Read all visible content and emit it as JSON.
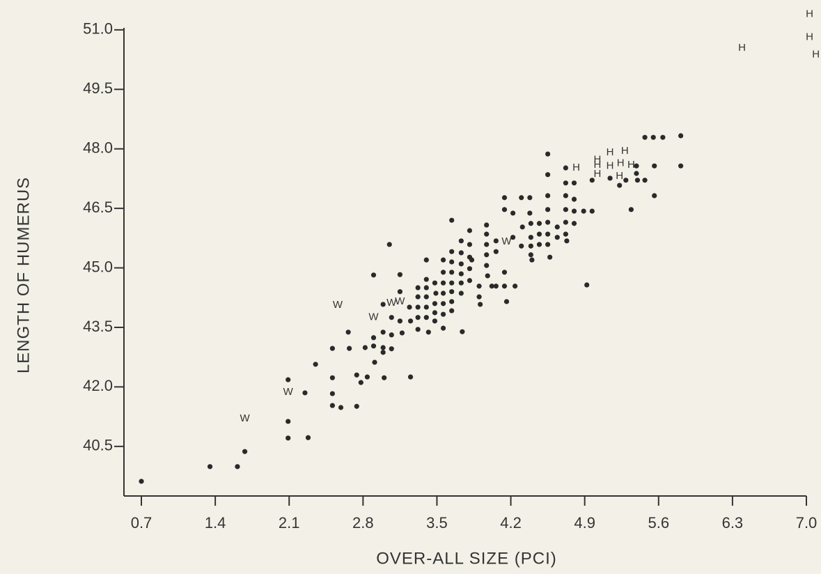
{
  "chart_data": {
    "type": "scatter",
    "x_label": "OVER-ALL SIZE (PCI)",
    "y_label": "LENGTH OF HUMERUS",
    "xlim": [
      0.535,
      7.0
    ],
    "ylim": [
      39.25,
      51.05
    ],
    "xticks": [
      0.7,
      1.4,
      2.1,
      2.8,
      3.5,
      4.2,
      4.9,
      5.6,
      6.3,
      {
        "value": 7,
        "label": "7.0"
      }
    ],
    "yticks": [
      {
        "value": 51,
        "label": "51.0"
      },
      49.5,
      {
        "value": 48,
        "label": "48.0"
      },
      46.5,
      {
        "value": 45,
        "label": "45.0"
      },
      43.5,
      {
        "value": 42,
        "label": "42.0"
      },
      40.5
    ],
    "color": "#2a2a2a",
    "series": [
      {
        "marker": "dot",
        "x": [
          0.7,
          1.35,
          1.61,
          1.68,
          2.09,
          2.09,
          2.09,
          2.25,
          2.28,
          2.35,
          2.51,
          2.51,
          2.51,
          2.51,
          2.59,
          2.74,
          2.66,
          2.67,
          2.74,
          2.78,
          2.82,
          2.84,
          2.9,
          2.9,
          2.91,
          2.9,
          2.99,
          2.99,
          2.99,
          3.0,
          2.99,
          3.05,
          3.07,
          3.07,
          3.07,
          3.15,
          3.15,
          3.15,
          3.17,
          3.24,
          3.25,
          3.25,
          3.32,
          3.32,
          3.32,
          3.32,
          3.32,
          3.4,
          3.4,
          3.4,
          3.4,
          3.4,
          3.4,
          3.42,
          3.48,
          3.49,
          3.48,
          3.48,
          3.48,
          3.56,
          3.56,
          3.56,
          3.56,
          3.56,
          3.56,
          3.56,
          3.64,
          3.64,
          3.64,
          3.64,
          3.64,
          3.64,
          3.64,
          3.64,
          3.73,
          3.73,
          3.73,
          3.73,
          3.73,
          3.73,
          3.74,
          3.81,
          3.81,
          3.81,
          3.81,
          3.81,
          3.83,
          3.9,
          3.9,
          3.91,
          3.97,
          3.97,
          3.97,
          3.97,
          3.97,
          3.98,
          4.02,
          4.06,
          4.06,
          4.06,
          4.14,
          4.14,
          4.16,
          4.14,
          4.14,
          4.22,
          4.24,
          4.22,
          4.3,
          4.31,
          4.3,
          4.38,
          4.38,
          4.39,
          4.39,
          4.39,
          4.39,
          4.4,
          4.47,
          4.47,
          4.47,
          4.55,
          4.55,
          4.55,
          4.55,
          4.55,
          4.55,
          4.55,
          4.57,
          4.64,
          4.64,
          4.72,
          4.72,
          4.72,
          4.72,
          4.72,
          4.72,
          4.73,
          4.8,
          4.8,
          4.8,
          4.8,
          4.89,
          4.97,
          4.92,
          5.34,
          4.97,
          5.14,
          5.23,
          5.29,
          5.39,
          5.39,
          5.4,
          5.47,
          5.55,
          5.64,
          5.81,
          5.47,
          5.56,
          5.56,
          5.81
        ],
        "values": [
          39.62,
          39.99,
          39.99,
          40.37,
          40.71,
          41.13,
          42.18,
          41.85,
          40.72,
          42.57,
          42.97,
          42.23,
          41.83,
          41.53,
          41.48,
          41.51,
          43.38,
          42.97,
          42.3,
          42.11,
          42.99,
          42.25,
          43.24,
          43.03,
          42.62,
          44.82,
          43.38,
          42.99,
          44.08,
          42.23,
          42.87,
          45.59,
          43.75,
          43.31,
          42.96,
          44.83,
          44.4,
          43.66,
          43.36,
          44.01,
          43.66,
          42.25,
          44.5,
          44.27,
          44.01,
          43.75,
          43.45,
          45.2,
          44.71,
          44.5,
          44.27,
          44.01,
          43.75,
          43.38,
          44.62,
          44.36,
          44.1,
          43.87,
          43.66,
          45.2,
          44.89,
          44.62,
          44.36,
          44.1,
          43.83,
          43.48,
          46.2,
          45.41,
          45.15,
          44.89,
          44.62,
          44.4,
          44.15,
          43.92,
          45.68,
          45.38,
          45.1,
          44.85,
          44.62,
          44.36,
          43.39,
          45.94,
          45.59,
          45.27,
          44.98,
          44.68,
          45.2,
          44.54,
          44.27,
          44.08,
          46.08,
          45.85,
          45.59,
          45.33,
          45.06,
          44.8,
          44.54,
          45.68,
          45.41,
          44.54,
          44.89,
          44.54,
          44.15,
          46.77,
          46.47,
          46.38,
          44.54,
          45.77,
          46.77,
          46.03,
          45.55,
          46.77,
          46.38,
          46.12,
          45.77,
          45.55,
          45.33,
          45.2,
          46.12,
          45.85,
          45.59,
          47.87,
          47.35,
          46.82,
          46.47,
          46.15,
          45.85,
          45.59,
          45.27,
          46.03,
          45.77,
          47.52,
          47.14,
          46.82,
          46.47,
          46.15,
          45.85,
          45.68,
          47.14,
          46.73,
          46.43,
          46.12,
          46.43,
          46.43,
          44.57,
          46.47,
          47.21,
          47.26,
          47.08,
          47.21,
          47.57,
          47.38,
          47.21,
          48.29,
          48.29,
          48.29,
          48.33,
          47.21,
          47.57,
          46.82,
          47.57
        ]
      },
      {
        "name": "W",
        "x": [
          2.56,
          2.9,
          3.07,
          3.15,
          2.09,
          1.68,
          4.16
        ],
        "values": [
          44.06,
          43.75,
          44.11,
          44.15,
          41.87,
          41.2,
          45.66
        ]
      },
      {
        "name": "H",
        "x": [
          7.03,
          7.03,
          7.09,
          6.39,
          4.82,
          5.02,
          5.14,
          5.28,
          5.02,
          5.14,
          5.24,
          5.34,
          5.02,
          5.23
        ],
        "values": [
          51.39,
          50.81,
          50.37,
          50.54,
          47.52,
          47.72,
          47.91,
          47.94,
          47.59,
          47.56,
          47.63,
          47.59,
          47.36,
          47.31
        ]
      }
    ]
  }
}
